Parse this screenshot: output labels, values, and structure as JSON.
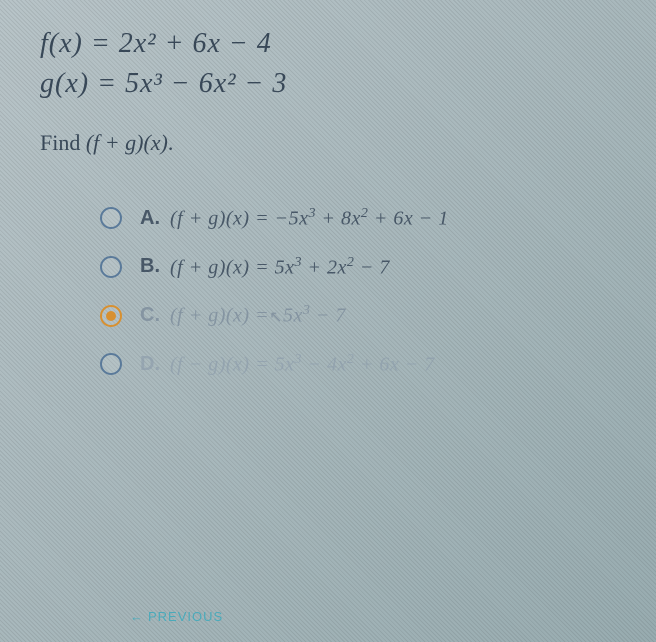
{
  "equations": {
    "f": "f(x) = 2x² + 6x − 4",
    "g": "g(x) = 5x³ − 6x² − 3"
  },
  "prompt": {
    "prefix": "Find ",
    "math": "(f + g)(x)",
    "suffix": "."
  },
  "options": {
    "A": {
      "label": "A.",
      "expr_html": "(f + g)(x) = −5x<sup>3</sup> + 8x<sup>2</sup> + 6x − 1",
      "selected": false,
      "fade": "none"
    },
    "B": {
      "label": "B.",
      "expr_html": "(f + g)(x) = 5x<sup>3</sup> + 2x<sup>2</sup> − 7",
      "selected": false,
      "fade": "none"
    },
    "C": {
      "label": "C.",
      "expr_html": "(f + g)(x) = 5x<sup>3</sup> − 7",
      "selected": true,
      "fade": "faded"
    },
    "D": {
      "label": "D.",
      "expr_html": "(f − g)(x) = 5x<sup>3</sup> − 4x<sup>2</sup> + 6x − 7",
      "selected": false,
      "fade": "more-faded"
    }
  },
  "nav": {
    "previous": "PREVIOUS"
  },
  "colors": {
    "background_top": "#b8c4c8",
    "background_bottom": "#98acb0",
    "text_primary": "#3a4a5a",
    "text_option": "#4a5a6a",
    "radio_border": "#5a7a9a",
    "radio_selected": "#d89030",
    "nav_link": "#4aaaba"
  },
  "typography": {
    "equation_fontsize": 28,
    "prompt_fontsize": 22,
    "option_fontsize": 20,
    "nav_fontsize": 13
  }
}
